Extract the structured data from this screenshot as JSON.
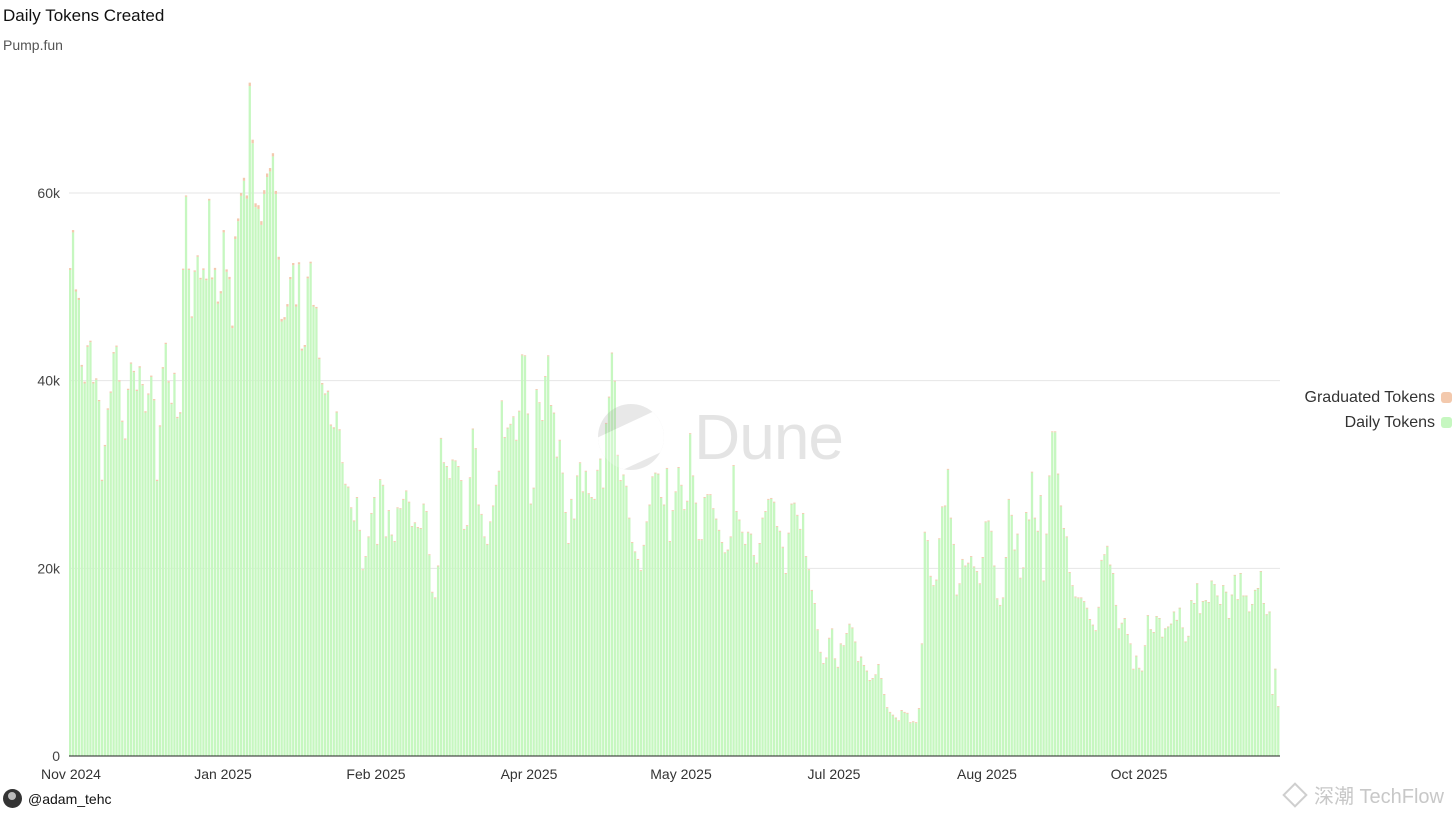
{
  "chart_data": {
    "type": "bar",
    "title": "Daily Tokens Created",
    "subtitle": "Pump.fun",
    "stacked": true,
    "start_date": "2024-11-01",
    "end_date": "2025-11-16",
    "x_ticks": [
      "Nov 2024",
      "Jan 2025",
      "Feb 2025",
      "Apr 2025",
      "May 2025",
      "Jul 2025",
      "Aug 2025",
      "Oct 2025"
    ],
    "y_ticks": [
      "0",
      "20k",
      "40k",
      "60k"
    ],
    "ylim": [
      0,
      72000
    ],
    "grid": true,
    "legend_position": "right",
    "series": [
      {
        "name": "Graduated Tokens",
        "color": "#f3c9ad",
        "values": [
          200,
          250,
          230,
          220,
          180,
          190,
          170,
          160,
          160,
          150,
          140,
          140,
          150,
          150,
          150,
          150,
          140,
          140,
          140,
          140,
          140,
          140,
          140,
          140,
          140,
          140,
          140,
          140,
          140,
          140,
          140,
          140,
          140,
          140,
          140,
          140,
          140,
          140,
          140,
          140,
          140,
          140,
          150,
          150,
          160,
          160,
          170,
          170,
          180,
          200,
          220,
          230,
          240,
          250,
          260,
          260,
          270,
          280,
          290,
          300,
          320,
          340,
          360,
          380,
          400,
          400,
          400,
          400,
          380,
          360,
          340,
          320,
          300,
          280,
          270,
          260,
          250,
          240,
          230,
          220,
          210,
          200,
          190,
          180,
          170,
          160,
          150,
          150,
          140,
          140,
          130,
          130,
          120,
          120,
          110,
          110,
          110,
          100,
          100,
          100,
          100,
          100,
          100,
          100,
          100,
          100,
          100,
          100,
          100,
          100,
          100,
          100,
          100,
          100,
          100,
          100,
          100,
          100,
          100,
          100,
          100,
          100,
          100,
          100,
          100,
          100,
          100,
          100,
          100,
          100,
          100,
          100,
          100,
          100,
          100,
          100,
          100,
          100,
          100,
          100,
          100,
          100,
          100,
          100,
          100,
          100,
          100,
          100,
          100,
          100,
          100,
          100,
          100,
          100,
          100,
          100,
          100,
          100,
          100,
          100,
          100,
          100,
          100,
          100,
          100,
          100,
          100,
          100,
          100,
          100,
          100,
          100,
          100,
          100,
          100,
          100,
          100,
          100,
          100,
          100,
          100,
          100,
          100,
          100,
          100,
          100,
          100,
          100,
          100,
          100,
          100,
          100,
          100,
          100,
          100,
          100,
          100,
          100,
          100,
          100,
          100,
          100,
          100,
          100,
          100,
          100,
          100,
          100,
          100,
          100,
          100,
          100,
          100,
          100,
          100,
          100,
          100,
          100,
          100,
          100,
          100,
          100,
          100,
          100,
          100,
          100,
          100,
          100,
          100,
          100,
          100,
          100,
          100,
          100,
          100,
          100,
          100,
          100,
          100,
          100,
          100,
          100,
          100,
          100,
          100,
          100,
          100,
          100,
          100,
          100,
          100,
          100,
          100,
          100,
          100,
          100,
          100,
          100,
          100,
          100,
          100,
          100,
          100,
          100,
          100,
          100,
          100,
          100,
          100,
          100,
          100,
          100,
          100,
          100,
          100,
          100,
          100,
          100,
          100,
          100,
          100,
          100,
          100,
          100,
          100,
          100,
          100,
          100,
          100,
          100,
          100,
          100,
          100,
          100,
          100,
          100,
          100,
          100,
          100,
          100,
          100,
          100,
          100,
          100,
          100,
          100,
          100,
          100,
          100,
          100,
          100,
          100,
          100,
          100,
          100,
          100,
          100,
          100,
          100,
          100,
          100,
          100,
          100,
          100,
          100,
          100,
          100,
          100,
          100,
          100,
          100,
          100,
          100,
          100,
          100,
          100,
          100,
          100,
          100,
          100,
          100,
          100,
          100,
          100,
          100,
          100,
          100,
          100,
          100,
          100,
          100,
          100,
          100,
          100,
          100,
          100,
          100,
          100,
          100,
          100,
          100,
          100,
          100,
          100,
          100,
          100,
          100,
          100,
          100,
          100,
          100,
          100
        ]
      },
      {
        "name": "Daily Tokens",
        "color": "#c6f7c0",
        "values": [
          51800,
          55800,
          49500,
          48600,
          41500,
          39700,
          43600,
          44100,
          39700,
          40100,
          37800,
          29300,
          33000,
          36900,
          38700,
          42900,
          43600,
          39900,
          35600,
          33700,
          39000,
          41800,
          40900,
          38900,
          41400,
          39500,
          36600,
          38500,
          40400,
          37900,
          29300,
          35100,
          41300,
          43900,
          39800,
          37500,
          40700,
          36000,
          36500,
          51800,
          59600,
          51800,
          46700,
          51600,
          53200,
          50800,
          51800,
          50700,
          59200,
          50800,
          51800,
          48200,
          49300,
          55800,
          51600,
          50800,
          45600,
          55100,
          57000,
          59700,
          61300,
          59400,
          71400,
          65300,
          58500,
          58300,
          56600,
          59900,
          61700,
          62300,
          63900,
          59900,
          52900,
          46300,
          46500,
          47900,
          50800,
          52300,
          47900,
          52400,
          43200,
          43600,
          50900,
          52500,
          47900,
          47700,
          42300,
          39600,
          38500,
          38800,
          35200,
          34900,
          36600,
          34700,
          31200,
          28900,
          28600,
          26400,
          25000,
          27500,
          24000,
          19800,
          21200,
          23300,
          25800,
          27500,
          22500,
          29400,
          28800,
          23300,
          26100,
          23500,
          22800,
          26400,
          26300,
          27300,
          28200,
          27000,
          24400,
          24800,
          24300,
          24200,
          26800,
          26000,
          21400,
          17400,
          16800,
          20200,
          33800,
          31200,
          30800,
          29500,
          31500,
          31400,
          30800,
          29300,
          24100,
          24500,
          29600,
          34800,
          32700,
          26700,
          25700,
          23300,
          22500,
          24900,
          26600,
          28800,
          30300,
          37800,
          33900,
          34900,
          35300,
          36100,
          33600,
          36700,
          42700,
          42600,
          36400,
          26800,
          28500,
          39000,
          37600,
          35700,
          40400,
          42600,
          37300,
          36500,
          31800,
          33600,
          30100,
          25900,
          22600,
          27300,
          25200,
          29800,
          31200,
          28100,
          30300,
          27900,
          27500,
          27300,
          30400,
          31600,
          28500,
          35400,
          38200,
          42900,
          39900,
          32000,
          29300,
          29900,
          28700,
          25300,
          22700,
          21700,
          20900,
          19700,
          22400,
          24900,
          26700,
          29700,
          30100,
          30000,
          27500,
          26700,
          30600,
          22800,
          26100,
          28100,
          30700,
          28800,
          26200,
          27100,
          34300,
          29800,
          26900,
          23000,
          23000,
          27500,
          27800,
          27800,
          26300,
          25200,
          24000,
          22700,
          21600,
          21900,
          23300,
          30900,
          26000,
          25100,
          23800,
          22500,
          23800,
          23600,
          21300,
          20500,
          22600,
          25300,
          26000,
          27300,
          27400,
          27000,
          24400,
          23900,
          22200,
          19400,
          23700,
          26800,
          26900,
          25600,
          24100,
          25800,
          21200,
          19800,
          17600,
          16200,
          13400,
          11000,
          9800,
          10400,
          12500,
          13500,
          10300,
          9400,
          11900,
          11700,
          13000,
          14000,
          13600,
          12100,
          10000,
          10500,
          9600,
          9000,
          8000,
          8200,
          8600,
          9700,
          8200,
          6500,
          5100,
          4600,
          4300,
          4000,
          3700,
          4800,
          4600,
          4500,
          3500,
          3600,
          3500,
          5000,
          11900,
          23800,
          22900,
          19100,
          18100,
          18700,
          23100,
          26500,
          26600,
          30500,
          25300,
          22500,
          17100,
          18300,
          20900,
          20200,
          20500,
          21200,
          20100,
          19600,
          18300,
          21100,
          24900,
          25000,
          23900,
          20200,
          16700,
          16000,
          16800,
          21100,
          27300,
          25600,
          21900,
          23600,
          18900,
          20000,
          25900,
          25100,
          30200,
          25300,
          23900,
          27700,
          18600,
          23600,
          29800,
          34500,
          34500,
          30000,
          26600,
          24200,
          23300,
          19500,
          18100,
          16900,
          16800,
          16800,
          16400,
          15700,
          14500,
          13900,
          13300,
          15800,
          20800,
          21400,
          22300,
          20300,
          19400,
          16000,
          13500,
          14100,
          14600,
          12900,
          11900,
          9200,
          10600,
          9300,
          9000,
          11700,
          15000,
          13500,
          13200,
          14900,
          14700,
          12700,
          13600,
          13800,
          14100,
          15400,
          14500,
          15800,
          13700,
          12200,
          12800,
          16600,
          16300,
          18400,
          15200,
          16500,
          16600,
          16400,
          18700,
          18300,
          17100,
          16200,
          18200,
          17500,
          14700,
          17200,
          19300,
          16700,
          19500,
          17100,
          17100,
          15400,
          16200,
          17700,
          17900,
          19700,
          16300,
          15100,
          15400,
          6600,
          9300,
          5300
        ]
      }
    ]
  },
  "legend": [
    {
      "label": "Graduated Tokens",
      "color": "#f3c9ad"
    },
    {
      "label": "Daily Tokens",
      "color": "#c6f7c0"
    }
  ],
  "watermark": {
    "text": "Dune"
  },
  "author": {
    "handle": "@adam_tehc"
  },
  "corner_watermark": {
    "text": "深潮 TechFlow"
  }
}
